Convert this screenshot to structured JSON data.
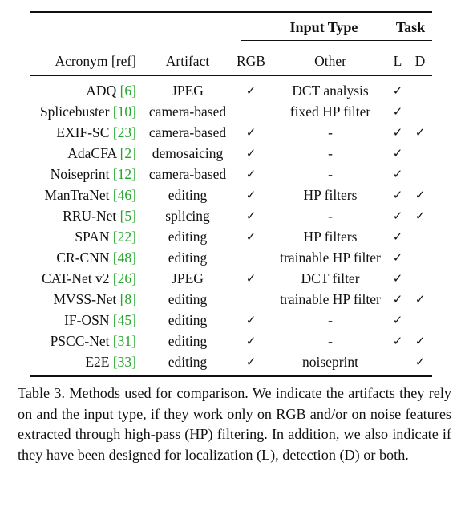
{
  "table": {
    "group_headers": {
      "input_type": "Input Type",
      "task": "Task"
    },
    "columns": {
      "acronym": "Acronym",
      "ref": "[ref]",
      "artifact": "Artifact",
      "rgb": "RGB",
      "other": "Other",
      "l": "L",
      "d": "D"
    },
    "rows": [
      {
        "acronym": "ADQ",
        "ref": "6",
        "artifact": "JPEG",
        "rgb": "✓",
        "other": "DCT analysis",
        "l": "✓",
        "d": ""
      },
      {
        "acronym": "Splicebuster",
        "ref": "10",
        "artifact": "camera-based",
        "rgb": "",
        "other": "fixed HP filter",
        "l": "✓",
        "d": ""
      },
      {
        "acronym": "EXIF-SC",
        "ref": "23",
        "artifact": "camera-based",
        "rgb": "✓",
        "other": "-",
        "l": "✓",
        "d": "✓"
      },
      {
        "acronym": "AdaCFA",
        "ref": "2",
        "artifact": "demosaicing",
        "rgb": "✓",
        "other": "-",
        "l": "✓",
        "d": ""
      },
      {
        "acronym": "Noiseprint",
        "ref": "12",
        "artifact": "camera-based",
        "rgb": "✓",
        "other": "-",
        "l": "✓",
        "d": ""
      },
      {
        "acronym": "ManTraNet",
        "ref": "46",
        "artifact": "editing",
        "rgb": "✓",
        "other": "HP filters",
        "l": "✓",
        "d": "✓"
      },
      {
        "acronym": "RRU-Net",
        "ref": "5",
        "artifact": "splicing",
        "rgb": "✓",
        "other": "-",
        "l": "✓",
        "d": "✓"
      },
      {
        "acronym": "SPAN",
        "ref": "22",
        "artifact": "editing",
        "rgb": "✓",
        "other": "HP filters",
        "l": "✓",
        "d": ""
      },
      {
        "acronym": "CR-CNN",
        "ref": "48",
        "artifact": "editing",
        "rgb": "",
        "other": "trainable HP filter",
        "l": "✓",
        "d": ""
      },
      {
        "acronym": "CAT-Net v2",
        "ref": "26",
        "artifact": "JPEG",
        "rgb": "✓",
        "other": "DCT filter",
        "l": "✓",
        "d": ""
      },
      {
        "acronym": "MVSS-Net",
        "ref": "8",
        "artifact": "editing",
        "rgb": "",
        "other": "trainable HP filter",
        "l": "✓",
        "d": "✓"
      },
      {
        "acronym": "IF-OSN",
        "ref": "45",
        "artifact": "editing",
        "rgb": "✓",
        "other": "-",
        "l": "✓",
        "d": ""
      },
      {
        "acronym": "PSCC-Net",
        "ref": "31",
        "artifact": "editing",
        "rgb": "✓",
        "other": "-",
        "l": "✓",
        "d": "✓"
      },
      {
        "acronym": "E2E",
        "ref": "33",
        "artifact": "editing",
        "rgb": "✓",
        "other": "noiseprint",
        "l": "",
        "d": "✓"
      }
    ]
  },
  "caption": {
    "text": "Table 3. Methods used for comparison. We indicate the artifacts they rely on and the input type, if they work only on RGB and/or on noise features extracted through high-pass (HP) filtering. In addition, we also indicate if they have been designed for localization (L), detection (D) or both."
  },
  "colors": {
    "reference_link": "#22a52a",
    "text": "#111111"
  }
}
